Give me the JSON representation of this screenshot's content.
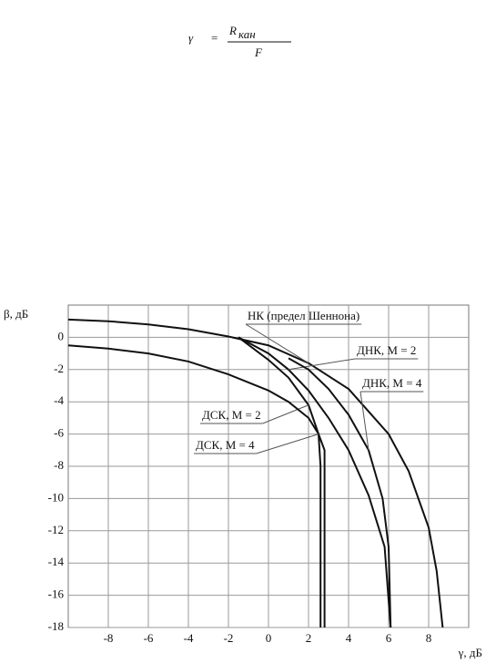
{
  "formula": {
    "lhs": "γ",
    "eq": "=",
    "num": "R",
    "sub": "кан",
    "den": "F"
  },
  "chart_data": {
    "type": "line",
    "ylabel": "β, дБ",
    "xlabel": "γ, дБ",
    "xlim": [
      -10,
      10
    ],
    "ylim": [
      -18,
      2
    ],
    "xticks": [
      -8,
      -6,
      -4,
      -2,
      0,
      2,
      4,
      6,
      8
    ],
    "yticks": [
      -18,
      -16,
      -14,
      -12,
      -10,
      -8,
      -6,
      -4,
      -2,
      0
    ],
    "grid": true,
    "series": [
      {
        "name": "НК (предел Шеннона)",
        "color": "#111111",
        "x": [
          -10,
          -8,
          -6,
          -4,
          -2,
          0,
          2,
          4,
          6,
          7,
          8,
          8.4,
          8.7
        ],
        "values": [
          1.1,
          1.0,
          0.8,
          0.5,
          0.05,
          -0.5,
          -1.6,
          -3.2,
          -6,
          -8.3,
          -11.8,
          -14.5,
          -18
        ]
      },
      {
        "name": "ДНК, M = 2",
        "color": "#111111",
        "x": [
          -1.5,
          0,
          1,
          2,
          3,
          4,
          5,
          5.8,
          6.1
        ],
        "values": [
          0,
          -1,
          -2,
          -3.3,
          -5,
          -7,
          -9.8,
          -13,
          -18
        ]
      },
      {
        "name": "ДНК, M = 4",
        "color": "#111111",
        "x": [
          1,
          2,
          3,
          4,
          5,
          5.7,
          6,
          6.1
        ],
        "values": [
          -1.3,
          -2,
          -3.2,
          -4.8,
          -7,
          -10,
          -13,
          -18
        ]
      },
      {
        "name": "ДСК, M = 2",
        "color": "#111111",
        "x": [
          -1.5,
          0,
          1,
          2,
          2.5,
          2.6,
          2.6
        ],
        "values": [
          0,
          -1.4,
          -2.5,
          -4.2,
          -6,
          -8,
          -18
        ]
      },
      {
        "name": "ДСК, M = 4",
        "color": "#111111",
        "x": [
          -10,
          -8,
          -6,
          -4,
          -2,
          0,
          1,
          2,
          2.5,
          2.8,
          2.8
        ],
        "values": [
          -0.5,
          -0.7,
          -1.0,
          -1.5,
          -2.3,
          -3.3,
          -4.0,
          -5.0,
          -6,
          -7,
          -18
        ]
      }
    ]
  }
}
